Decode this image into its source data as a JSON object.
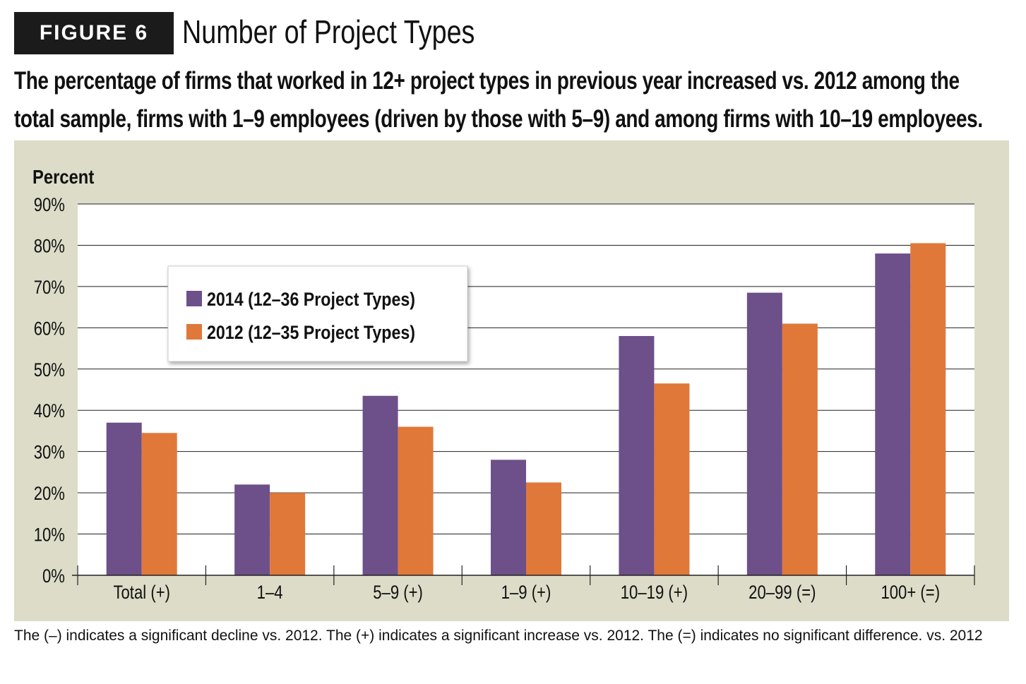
{
  "figure_label": "FIGURE 6",
  "footnote": "The (–) indicates a significant decline vs. 2012. The (+) indicates a significant increase vs. 2012. The (=) indicates no significant difference. vs. 2012",
  "colors": {
    "series_2014": "#6d4f8a",
    "series_2012": "#e0783a",
    "panel_bg": "#dcdcc8",
    "plot_bg": "#ffffff"
  },
  "chart_data": {
    "type": "bar",
    "title": "Number of Project Types",
    "subtitle": "The percentage of firms that worked in 12+ project types in previous year increased vs. 2012 among the total sample, firms with 1–9 employees (driven by those with 5–9) and among firms with 10–19 employees.",
    "ylabel": "Percent",
    "xlabel": "",
    "ylim": [
      0,
      90
    ],
    "yticks": [
      "0%",
      "10%",
      "20%",
      "30%",
      "40%",
      "50%",
      "60%",
      "70%",
      "80%",
      "90%"
    ],
    "grid": true,
    "legend_position": "top-left",
    "categories": [
      "Total (+)",
      "1–4",
      "5–9 (+)",
      "1–9 (+)",
      "10–19 (+)",
      "20–99 (=)",
      "100+ (=)"
    ],
    "series": [
      {
        "name": "2014 (12–36 Project Types)",
        "values": [
          37,
          22,
          43.5,
          28,
          58,
          68.5,
          78
        ]
      },
      {
        "name": "2012 (12–35 Project Types)",
        "values": [
          34.5,
          20,
          36,
          22.5,
          46.5,
          61,
          80.5
        ]
      }
    ]
  }
}
